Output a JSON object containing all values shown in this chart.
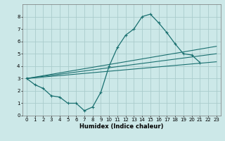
{
  "title": "",
  "xlabel": "Humidex (Indice chaleur)",
  "ylabel": "",
  "background_color": "#cce8e8",
  "grid_color": "#aacccc",
  "line_color": "#1a7070",
  "x_data": [
    0,
    1,
    2,
    3,
    4,
    5,
    6,
    7,
    8,
    9,
    10,
    11,
    12,
    13,
    14,
    15,
    16,
    17,
    18,
    19,
    20,
    21,
    22,
    23
  ],
  "y_main": [
    3.0,
    2.5,
    2.2,
    1.6,
    1.5,
    1.0,
    1.0,
    0.4,
    0.7,
    1.9,
    4.0,
    5.5,
    6.5,
    7.0,
    8.0,
    8.2,
    7.5,
    6.7,
    5.8,
    5.0,
    4.9,
    4.3,
    null,
    null
  ],
  "xlim": [
    -0.5,
    23.5
  ],
  "ylim": [
    0,
    9
  ],
  "yticks": [
    0,
    1,
    2,
    3,
    4,
    5,
    6,
    7,
    8
  ],
  "xticks": [
    0,
    1,
    2,
    3,
    4,
    5,
    6,
    7,
    8,
    9,
    10,
    11,
    12,
    13,
    14,
    15,
    16,
    17,
    18,
    19,
    20,
    21,
    22,
    23
  ],
  "reg_lines": [
    {
      "x_start": 0,
      "y_start": 3.0,
      "x_end": 23,
      "y_end": 4.35
    },
    {
      "x_start": 0,
      "y_start": 3.0,
      "x_end": 23,
      "y_end": 5.0
    },
    {
      "x_start": 0,
      "y_start": 3.0,
      "x_end": 23,
      "y_end": 5.6
    }
  ]
}
